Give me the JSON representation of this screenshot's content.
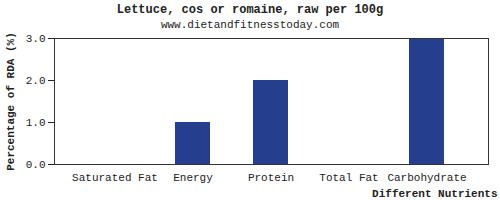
{
  "chart_data": {
    "type": "bar",
    "title": "Lettuce, cos or romaine, raw per 100g",
    "subtitle": "www.dietandfitnesstoday.com",
    "x_label": "Different Nutrients",
    "y_label": "Percentage of RDA (%)",
    "categories": [
      "Saturated Fat",
      "Energy",
      "Protein",
      "Total Fat",
      "Carbohydrate"
    ],
    "values": [
      0,
      1,
      2,
      0,
      3
    ],
    "color": "#253f8e",
    "ylim": [
      0,
      3
    ],
    "yticks": [
      {
        "value": 0,
        "label": "0.0"
      },
      {
        "value": 1,
        "label": "1.0"
      },
      {
        "value": 2,
        "label": "2.0"
      },
      {
        "value": 3,
        "label": "3.0"
      }
    ],
    "grid": false
  }
}
